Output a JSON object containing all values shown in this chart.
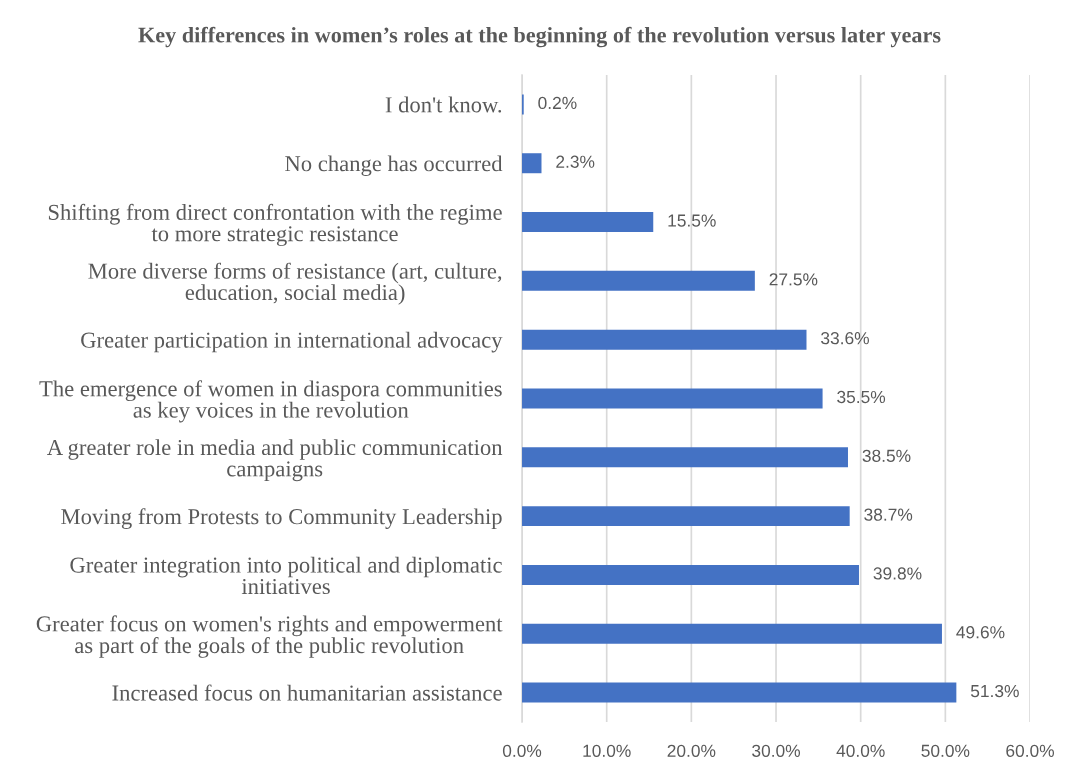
{
  "chart_data": {
    "type": "bar",
    "orientation": "horizontal",
    "title": "Key differences in women’s roles at the beginning of the revolution versus later years",
    "categories": [
      "I don't know.",
      "No change has occurred",
      "Shifting from direct confrontation with the regime\nto more strategic resistance",
      "More diverse forms of resistance (art, culture,\neducation, social media)",
      "Greater participation in international advocacy",
      "The emergence of women in diaspora communities\nas key voices in the revolution",
      "A greater role in media and public communication\ncampaigns",
      "Moving from Protests to Community Leadership",
      "Greater integration into political and diplomatic\ninitiatives",
      "Greater focus on women's rights and empowerment\nas part of the goals of the public revolution",
      "Increased focus on humanitarian assistance"
    ],
    "values": [
      0.2,
      2.3,
      15.5,
      27.5,
      33.6,
      35.5,
      38.5,
      38.7,
      39.8,
      49.6,
      51.3
    ],
    "value_labels": [
      "0.2%",
      "2.3%",
      "15.5%",
      "27.5%",
      "33.6%",
      "35.5%",
      "38.5%",
      "38.7%",
      "39.8%",
      "49.6%",
      "51.3%"
    ],
    "color": "#4472c4",
    "xlim": [
      0,
      60
    ],
    "xticks": [
      {
        "value": 0,
        "label": "0.0%"
      },
      {
        "value": 10,
        "label": "10.0%"
      },
      {
        "value": 20,
        "label": "20.0%"
      },
      {
        "value": 30,
        "label": "30.0%"
      },
      {
        "value": 40,
        "label": "40.0%"
      },
      {
        "value": 50,
        "label": "50.0%"
      },
      {
        "value": 60,
        "label": "60.0%"
      }
    ],
    "grid": "x",
    "legend": false
  }
}
